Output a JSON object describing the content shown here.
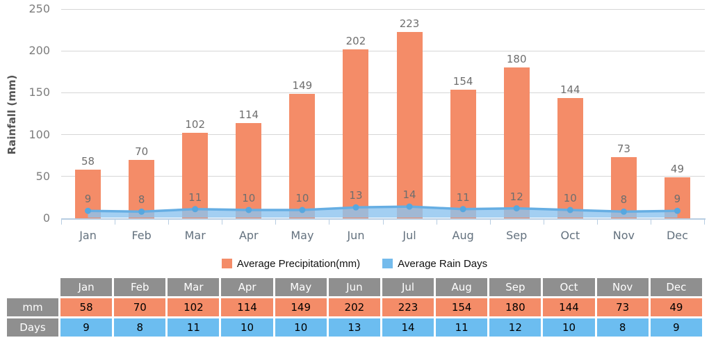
{
  "chart_data": {
    "type": [
      "bar",
      "line"
    ],
    "title": "",
    "ylabel": "Rainfall (mm)",
    "ylim": [
      0,
      250
    ],
    "yticks": [
      0,
      50,
      100,
      150,
      200,
      250
    ],
    "grid": true,
    "legend_position": "bottom",
    "categories": [
      "Jan",
      "Feb",
      "Mar",
      "Apr",
      "May",
      "Jun",
      "Jul",
      "Aug",
      "Sep",
      "Oct",
      "Nov",
      "Dec"
    ],
    "series": [
      {
        "name": "Average Precipitation(mm)",
        "type": "bar",
        "values": [
          58,
          70,
          102,
          114,
          149,
          202,
          223,
          154,
          180,
          144,
          73,
          49
        ],
        "color": "#F48C68"
      },
      {
        "name": "Average Rain Days",
        "type": "area-line",
        "values": [
          9,
          8,
          11,
          10,
          10,
          13,
          14,
          11,
          12,
          10,
          8,
          9
        ],
        "color": "#66AEE3",
        "fill": "rgba(140,195,239,0.8)",
        "marker_color": "#57A7DF",
        "swatch_color": "#74BBEC"
      }
    ]
  },
  "legend": {
    "precipitation_label": "Average Precipitation(mm)",
    "rain_days_label": "Average Rain Days"
  },
  "table": {
    "corner_label": "",
    "row_labels": [
      "mm",
      "Days"
    ],
    "header_bg": "#8F8F8F",
    "mm_row_bg": "#F48C68",
    "days_row_bg": "#6CBDF0"
  },
  "colors": {
    "bar_orange": "#F48C68",
    "line_blue": "#66AEE3",
    "area_fill_blue": "#A3CFF2",
    "table_blue": "#6CBDF0",
    "table_gray": "#8F8F8F",
    "gridline": "#D6D6D6",
    "axis": "#B7CDE2",
    "label_gray": "#6E6E6E"
  }
}
